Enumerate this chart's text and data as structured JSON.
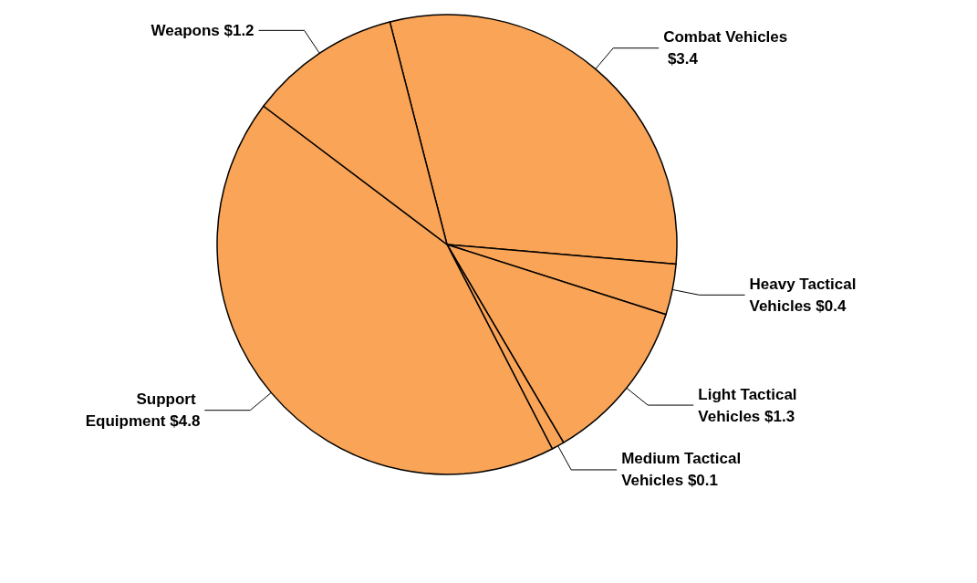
{
  "chart_data": {
    "type": "pie",
    "categories": [
      "Combat Vehicles",
      "Heavy Tactical Vehicles",
      "Light Tactical Vehicles",
      "Medium Tactical Vehicles",
      "Support Equipment",
      "Weapons"
    ],
    "values": [
      3.4,
      0.4,
      1.3,
      0.1,
      4.8,
      1.2
    ],
    "value_labels": [
      "$3.4",
      "$0.4",
      "$1.3",
      "$0.1",
      "$4.8",
      "$1.2"
    ],
    "colors": [
      "#f9a456",
      "#f9a456",
      "#f9a456",
      "#f9a456",
      "#f9a456",
      "#f9a456"
    ],
    "legend": false
  }
}
